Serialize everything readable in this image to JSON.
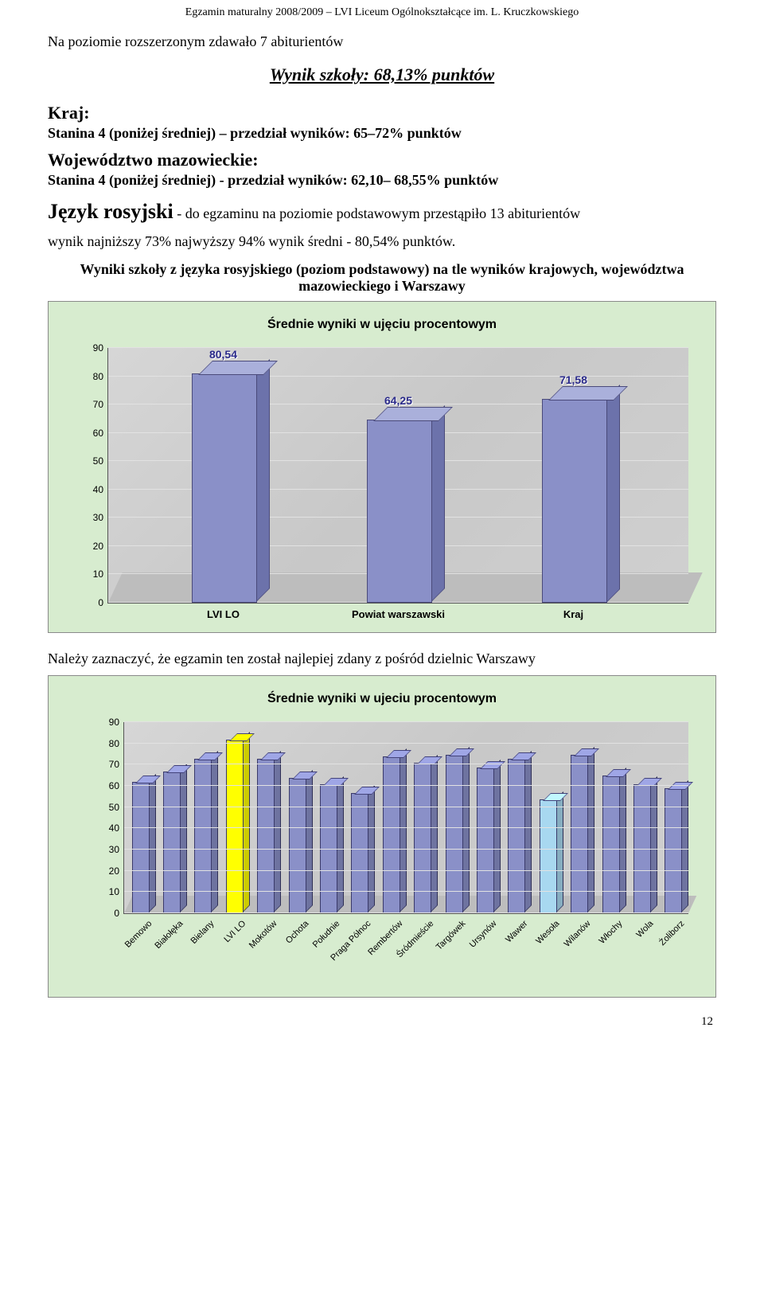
{
  "header": "Egzamin maturalny 2008/2009 – LVI Liceum Ogólnokształcące im. L. Kruczkowskiego",
  "intro": "Na poziomie rozszerzonym zdawało 7 abiturientów",
  "school_result_label": "Wynik szkoły:  68,13% punktów",
  "kraj": {
    "title": "Kraj:",
    "line": "Stanina 4 (poniżej średniej) – przedział wyników: 65–72% punktów"
  },
  "woj": {
    "title": "Województwo mazowieckie:",
    "line": "Stanina 4 (poniżej średniej) - przedział wyników: 62,10– 68,55% punktów"
  },
  "lang": {
    "name": "Język rosyjski",
    "desc": " - do egzaminu na poziomie podstawowym przestąpiło 13 abiturientów"
  },
  "span": "wynik najniższy 73%  najwyższy  94%  wynik średni -  80,54% punktów.",
  "context1": "Wyniki szkoły z języka rosyjskiego (poziom podstawowy) na tle wyników krajowych, województwa mazowieckiego i Warszawy",
  "chart1": {
    "type": "bar",
    "title": "Średnie wyniki w ujęciu procentowym",
    "categories": [
      "LVI LO",
      "Powiat warszawski",
      "Kraj"
    ],
    "values": [
      80.54,
      64.25,
      71.58
    ],
    "value_labels": [
      "80,54",
      "64,25",
      "71,58"
    ],
    "ylim": [
      0,
      90
    ],
    "ytick_step": 10,
    "bar_color_front": "#8a90c8",
    "bar_color_top": "#aab0db",
    "bar_color_side": "#6c72ab",
    "bg": "#d7eccf",
    "plot_bg": "#cfcfcf",
    "label_fontsize": 14,
    "title_fontsize": 16
  },
  "between": "Należy zaznaczyć, że egzamin ten został najlepiej zdany z pośród dzielnic Warszawy",
  "chart2": {
    "type": "bar",
    "title": "Średnie wyniki w ujeciu procentowym",
    "categories": [
      "Bemowo",
      "Białołęka",
      "Bielany",
      "LVI LO",
      "Mokotów",
      "Ochota",
      "Południe",
      "Praga Północ",
      "Rembertów",
      "Śródmieście",
      "Targówek",
      "Ursynów",
      "Wawer",
      "Wesoła",
      "Wilanów",
      "Włochy",
      "Wola",
      "Żoliborz"
    ],
    "values": [
      61,
      66,
      72,
      81,
      72,
      63,
      60,
      56,
      73,
      70,
      74,
      68,
      72,
      53,
      74,
      64,
      60,
      58
    ],
    "highlight_colors": {
      "default": "#8a90c8",
      "LVI LO": "#ffff00",
      "Wesoła": "#a8d8f0"
    },
    "ylim": [
      0,
      90
    ],
    "ytick_step": 10,
    "bg": "#d7eccf",
    "plot_bg": "#cfcfcf",
    "label_fontsize": 11
  },
  "page_number": "12"
}
